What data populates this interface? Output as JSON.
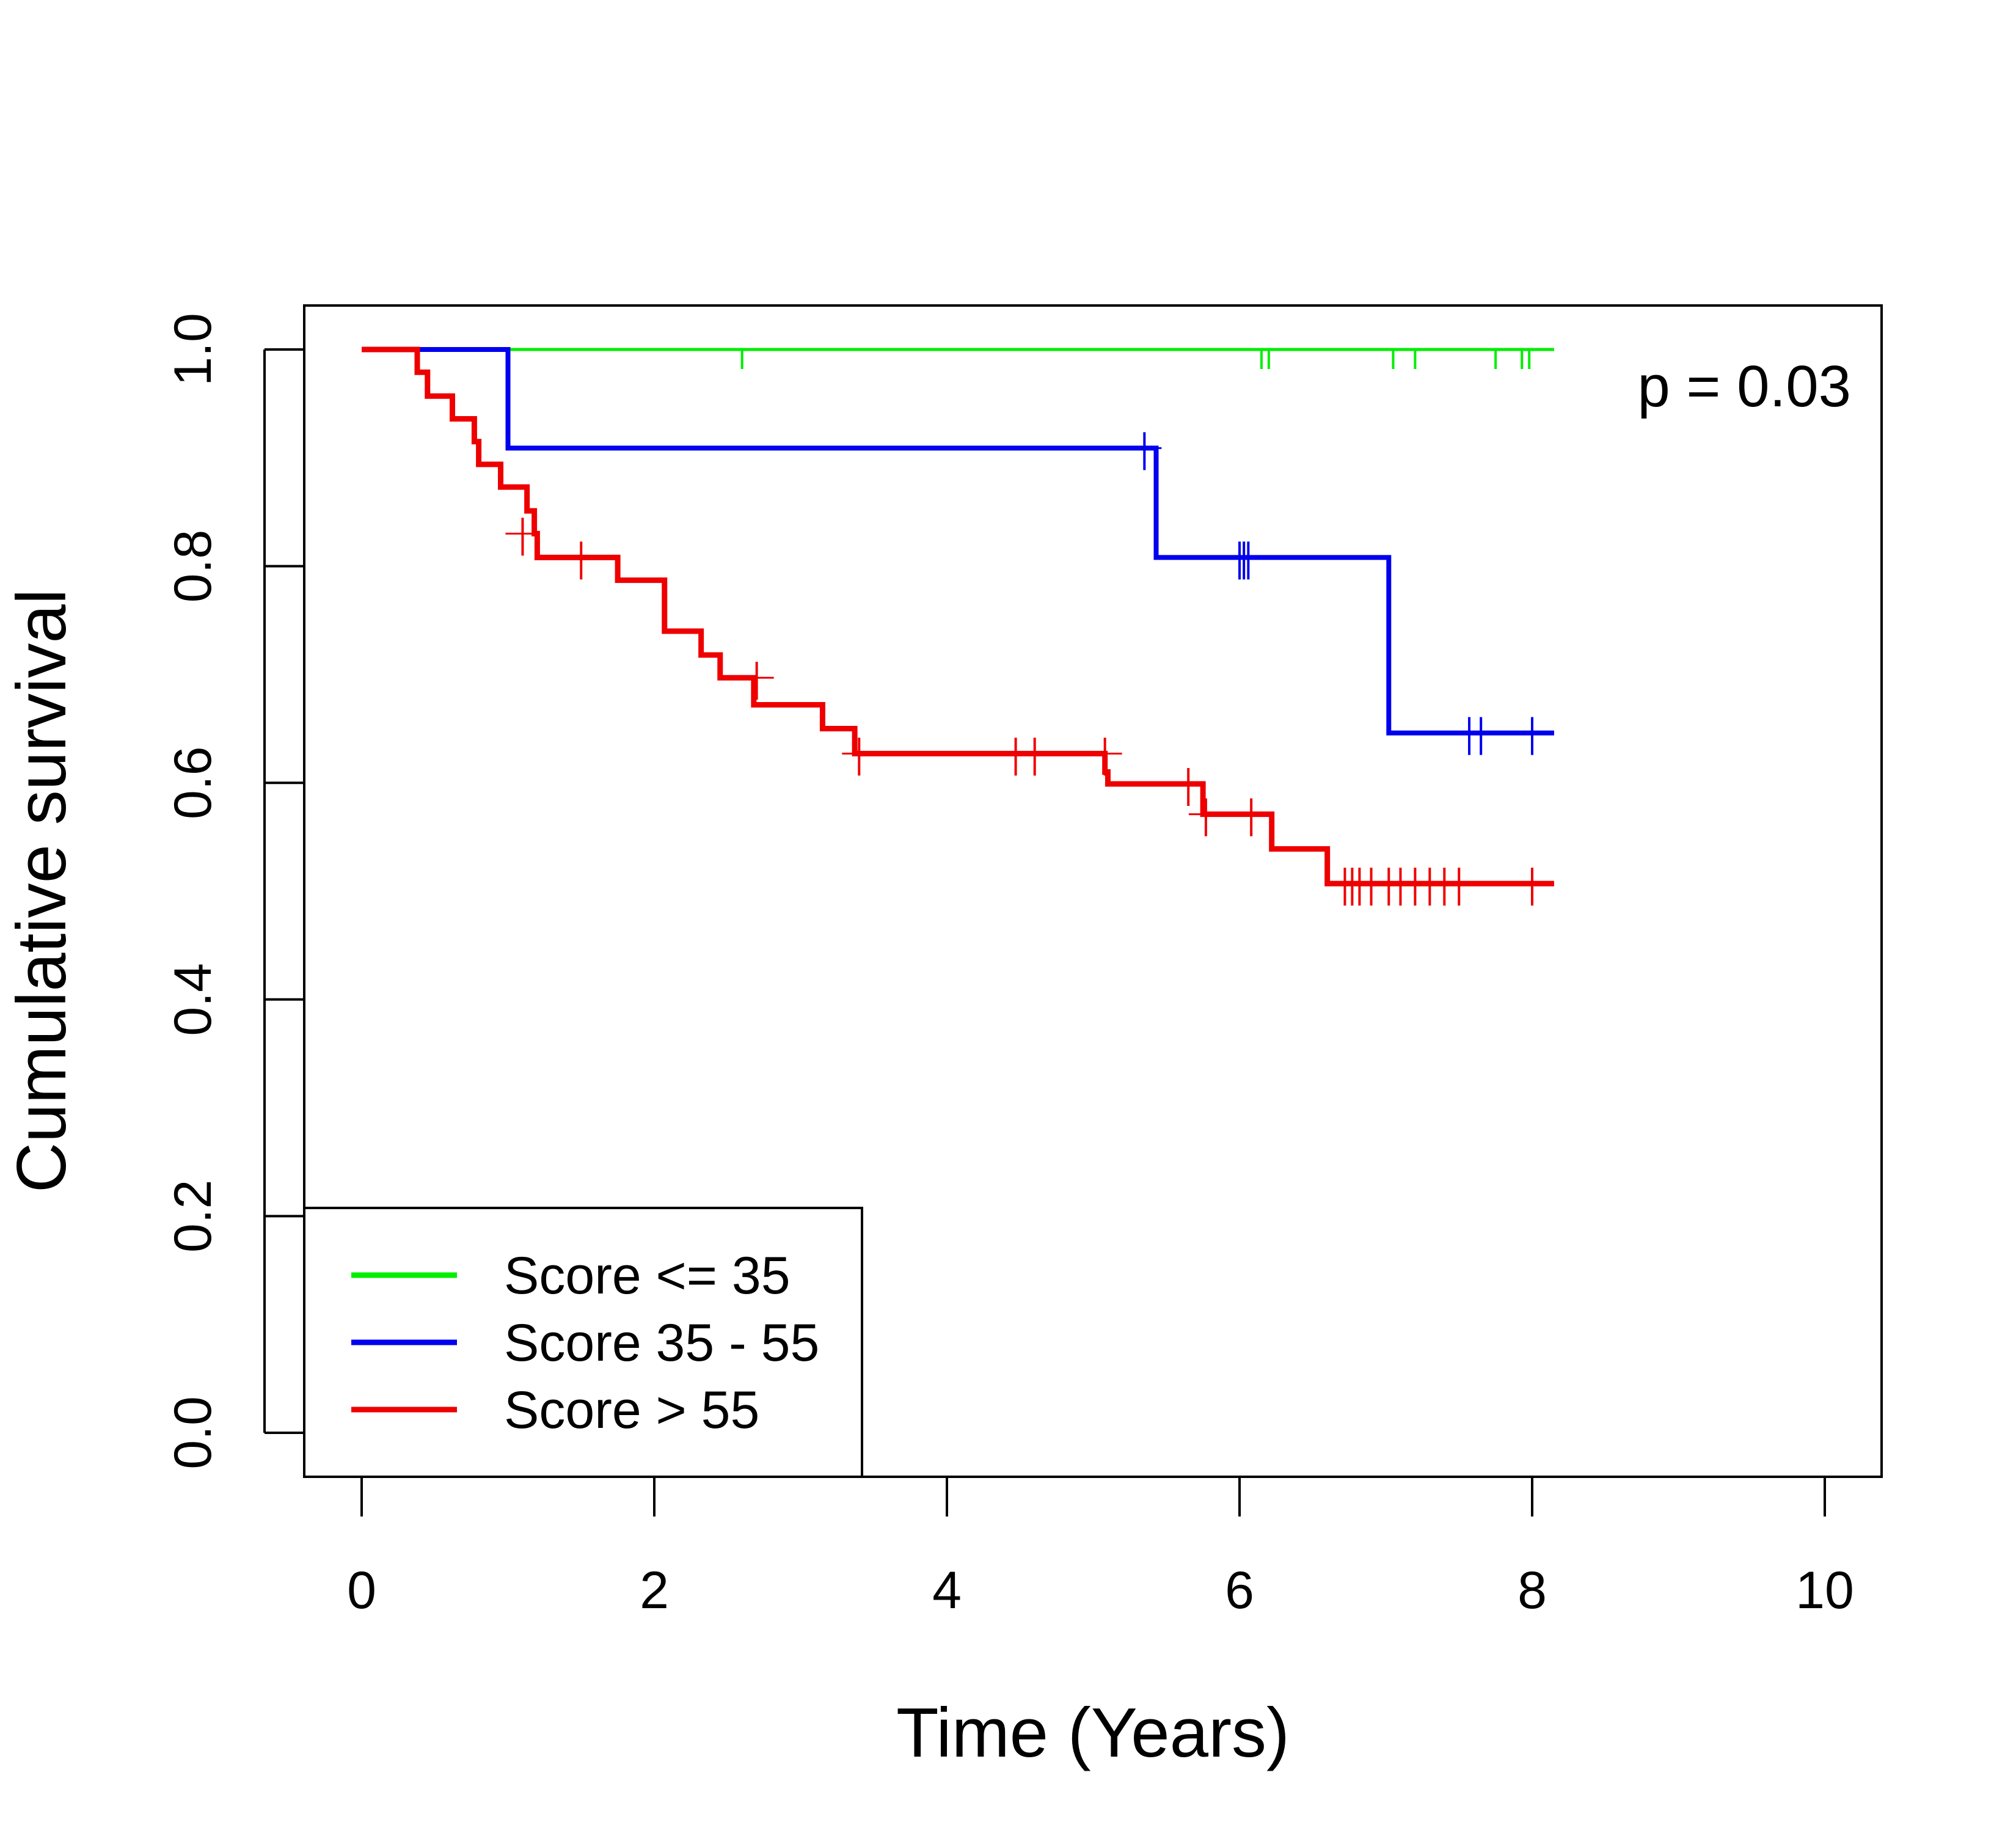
{
  "chart_data": {
    "type": "line",
    "title": "",
    "xlabel": "Time (Years)",
    "ylabel": "Cumulative survival",
    "xlim": [
      0,
      10
    ],
    "ylim": [
      0,
      1
    ],
    "x_ticks": [
      "0",
      "2",
      "4",
      "6",
      "8",
      "10"
    ],
    "y_ticks": [
      "0.0",
      "0.2",
      "0.4",
      "0.6",
      "0.8",
      "1.0"
    ],
    "annotation": "p = 0.03",
    "grid": false,
    "legend_position": "bottom-left",
    "series": [
      {
        "name": "Score <= 35",
        "color": "#00ee00",
        "steps": [
          [
            0.38,
            1.0
          ],
          [
            8.15,
            1.0
          ]
        ],
        "censor": [
          [
            2.6,
            1.0
          ],
          [
            6.15,
            1.0
          ],
          [
            6.2,
            1.0
          ],
          [
            7.05,
            1.0
          ],
          [
            7.2,
            1.0
          ],
          [
            7.75,
            1.0
          ],
          [
            7.93,
            1.0
          ],
          [
            7.98,
            1.0
          ]
        ]
      },
      {
        "name": "Score 35 - 55",
        "color": "#0000ee",
        "steps": [
          [
            0.38,
            1.0
          ],
          [
            1.0,
            0.909
          ],
          [
            5.43,
            0.808
          ],
          [
            7.02,
            0.646
          ],
          [
            8.15,
            0.646
          ]
        ],
        "censor": [
          [
            5.35,
            0.909
          ],
          [
            6.0,
            0.808
          ],
          [
            6.03,
            0.808
          ],
          [
            6.06,
            0.808
          ],
          [
            7.57,
            0.646
          ],
          [
            7.65,
            0.646
          ],
          [
            8.0,
            0.646
          ]
        ]
      },
      {
        "name": "Score > 55",
        "color": "#ee0000",
        "steps": [
          [
            0.0,
            1.0
          ],
          [
            0.38,
            0.979
          ],
          [
            0.45,
            0.957
          ],
          [
            0.62,
            0.936
          ],
          [
            0.77,
            0.915
          ],
          [
            0.8,
            0.894
          ],
          [
            0.95,
            0.873
          ],
          [
            1.13,
            0.851
          ],
          [
            1.18,
            0.83
          ],
          [
            1.2,
            0.808
          ],
          [
            1.75,
            0.787
          ],
          [
            2.07,
            0.74
          ],
          [
            2.32,
            0.718
          ],
          [
            2.45,
            0.697
          ],
          [
            2.68,
            0.672
          ],
          [
            3.15,
            0.65
          ],
          [
            3.37,
            0.627
          ],
          [
            5.08,
            0.61
          ],
          [
            5.1,
            0.599
          ],
          [
            5.75,
            0.571
          ],
          [
            6.22,
            0.539
          ],
          [
            6.6,
            0.507
          ],
          [
            8.15,
            0.507
          ]
        ],
        "censor": [
          [
            1.1,
            0.83
          ],
          [
            1.5,
            0.808
          ],
          [
            2.7,
            0.697
          ],
          [
            3.4,
            0.627
          ],
          [
            4.47,
            0.627
          ],
          [
            4.6,
            0.627
          ],
          [
            5.08,
            0.627
          ],
          [
            5.65,
            0.599
          ],
          [
            5.77,
            0.571
          ],
          [
            6.08,
            0.571
          ],
          [
            6.72,
            0.507
          ],
          [
            6.77,
            0.507
          ],
          [
            6.82,
            0.507
          ],
          [
            6.9,
            0.507
          ],
          [
            7.02,
            0.507
          ],
          [
            7.1,
            0.507
          ],
          [
            7.2,
            0.507
          ],
          [
            7.3,
            0.507
          ],
          [
            7.4,
            0.507
          ],
          [
            7.5,
            0.507
          ],
          [
            8.0,
            0.507
          ]
        ]
      }
    ]
  }
}
